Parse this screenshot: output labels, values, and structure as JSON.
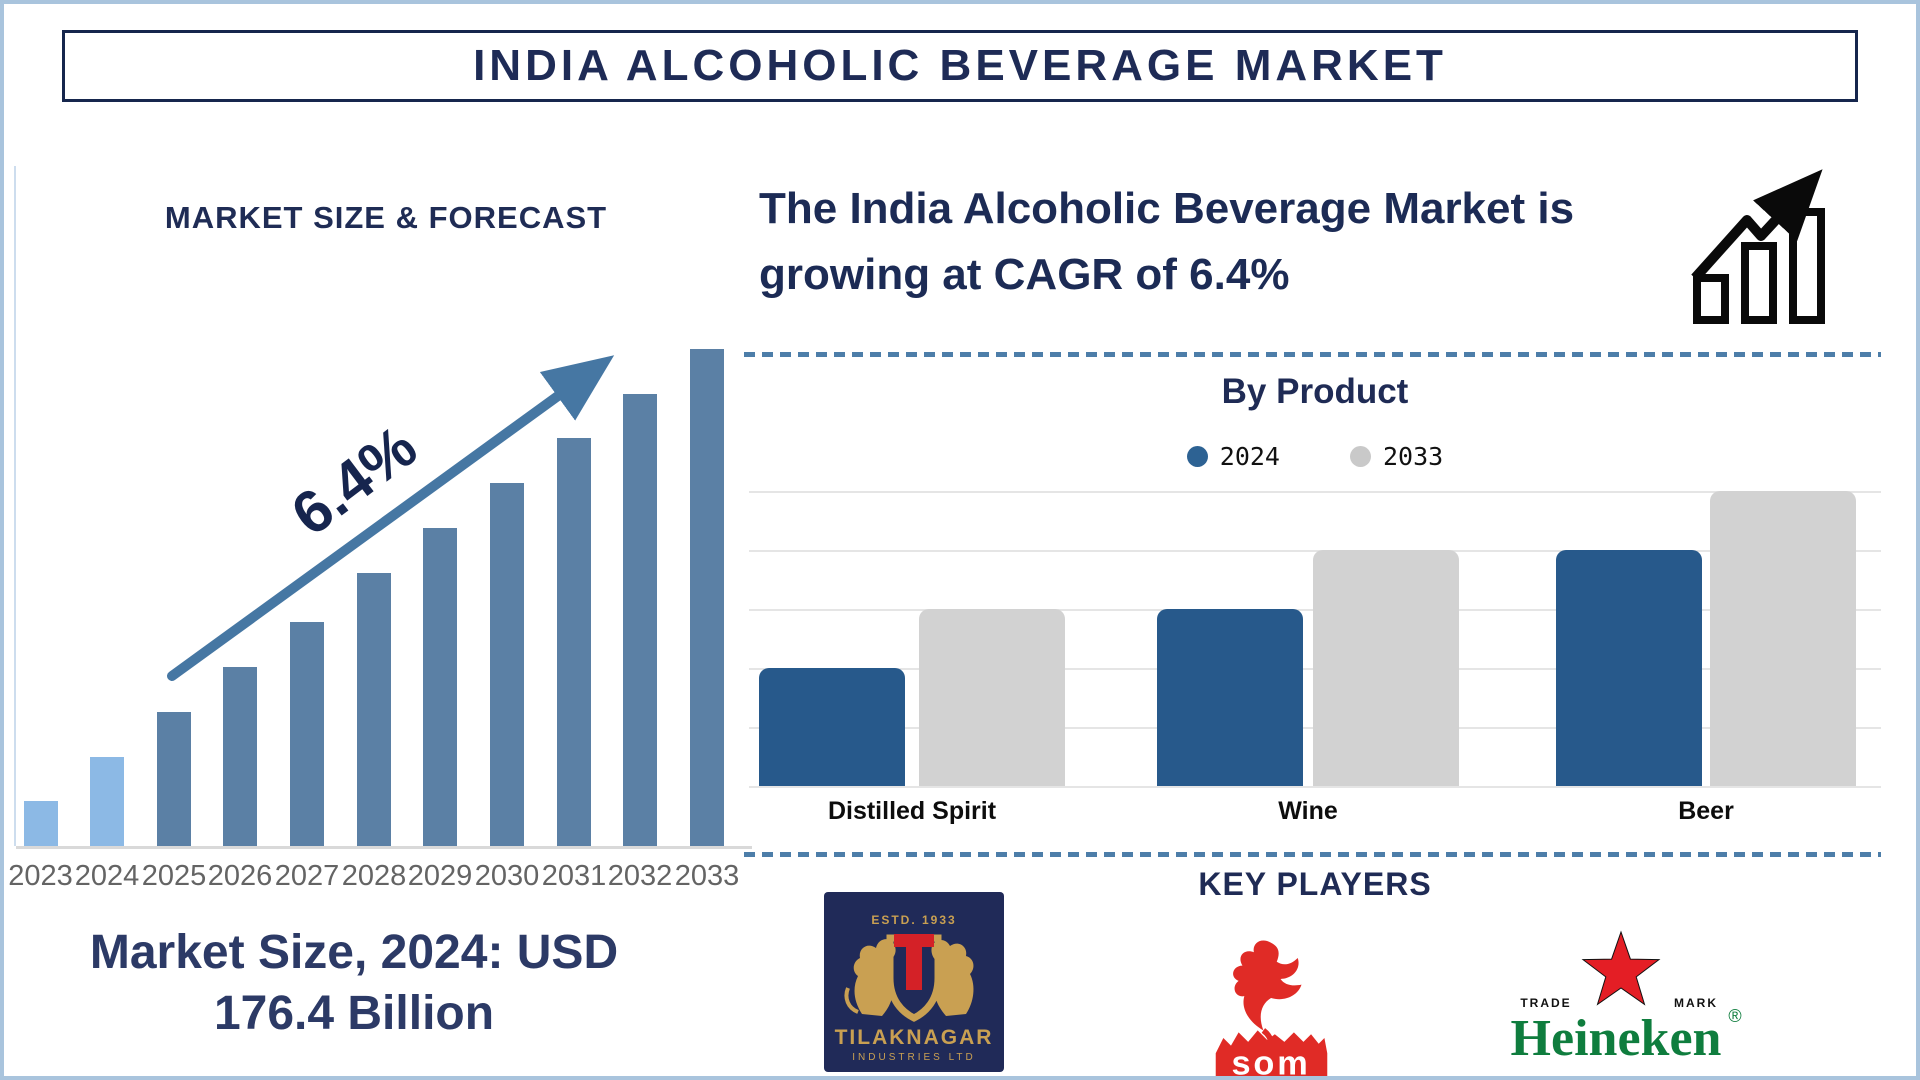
{
  "page_title": "INDIA ALCOHOLIC BEVERAGE MARKET",
  "left_panel": {
    "market_size_note_line1": "Market Size, 2024: USD",
    "market_size_note_line2": "176.4 Billion"
  },
  "right_panel": {
    "growth_statement": "The India Alcoholic Beverage Market is growing at CAGR of 6.4%",
    "key_players_heading": "KEY PLAYERS"
  },
  "key_players": {
    "tilaknagar": {
      "estd": "ESTD. 1933",
      "name": "TILAKNAGAR",
      "subtitle": "INDUSTRIES LTD"
    },
    "som": {
      "wordmark": "som"
    },
    "heineken": {
      "trade": "TRADE",
      "mark": "MARK",
      "wordmark": "Heineken",
      "registered": "®"
    }
  },
  "icons": {
    "growth_icon": "growth-chart-icon",
    "trend_arrow": "trend-arrow-icon"
  },
  "colors": {
    "navy_text": "#1e2b56",
    "forecast_bar_light_blue": "#8cb9e5",
    "forecast_bar_slate_blue": "#5b80a5",
    "trend_arrow_blue": "#4677a3",
    "product_2024_blue": "#27598b",
    "product_2033_gray": "#d2d2d2",
    "dashed_divider_blue": "#4d7ea9",
    "outer_border_blue": "#a9c4dd",
    "tilaknagar_navy": "#202a58",
    "tilaknagar_gold": "#c9a052",
    "logo_red": "#e02b26",
    "heineken_green": "#0f7d3e"
  },
  "chart_data": [
    {
      "type": "bar",
      "title": "MARKET SIZE & FORECAST",
      "categories": [
        "2023",
        "2024",
        "2025",
        "2026",
        "2027",
        "2028",
        "2029",
        "2030",
        "2031",
        "2032",
        "2033"
      ],
      "values_relative_pct": [
        9,
        18,
        27,
        36,
        45,
        55,
        64,
        73,
        82,
        91,
        100
      ],
      "highlight_years": [
        "2023",
        "2024"
      ],
      "annotation": "6.4%",
      "xlabel": "",
      "ylabel": "",
      "y_axis_shown": false,
      "note": "bar heights relative; no numeric axis shown in figure"
    },
    {
      "type": "bar",
      "title": "By Product",
      "categories": [
        "Distilled Spirit",
        "Wine",
        "Beer"
      ],
      "series": [
        {
          "name": "2024",
          "values": [
            2,
            3,
            4
          ]
        },
        {
          "name": "2033",
          "values": [
            3,
            4,
            5
          ]
        }
      ],
      "ylim": [
        0,
        5
      ],
      "value_units": "relative gridline units (no axis labels shown)",
      "grid": true,
      "legend_position": "top"
    }
  ]
}
